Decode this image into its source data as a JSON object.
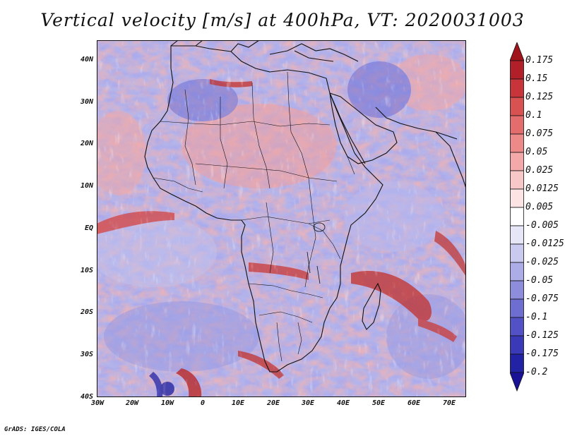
{
  "title": "Vertical velocity [m/s] at 400hPa, VT: 2020031003",
  "credit": "GrADS: IGES/COLA",
  "latitude_labels": [
    "40N",
    "30N",
    "20N",
    "10N",
    "EQ",
    "10S",
    "20S",
    "30S",
    "40S"
  ],
  "longitude_labels": [
    "30W",
    "20W",
    "10W",
    "0",
    "10E",
    "20E",
    "30E",
    "40E",
    "50E",
    "60E",
    "70E"
  ],
  "colorbar": {
    "labels": [
      "0.175",
      "0.15",
      "0.125",
      "0.1",
      "0.075",
      "0.05",
      "0.025",
      "0.0125",
      "0.005",
      "-0.005",
      "-0.0125",
      "-0.025",
      "-0.05",
      "-0.075",
      "-0.1",
      "-0.125",
      "-0.175",
      "-0.2"
    ],
    "colors": [
      "#b11f28",
      "#c7353b",
      "#d85252",
      "#e36d6d",
      "#ec8a8a",
      "#f3a9a9",
      "#f8c8c8",
      "#fce4e4",
      "#ffffff",
      "#e6e6f7",
      "#cacaf0",
      "#acace6",
      "#8d8ddc",
      "#6e6ed1",
      "#5252c6",
      "#3a3ab8",
      "#2222a4"
    ],
    "end_colors": {
      "max": "#a0141c",
      "min": "#1a1296"
    }
  }
}
